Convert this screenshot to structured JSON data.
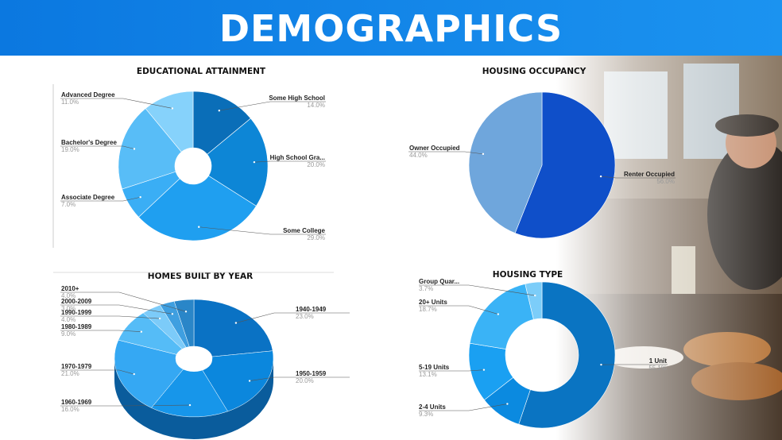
{
  "page": {
    "title": "DEMOGRAPHICS"
  },
  "colors": {
    "banner": "#0b78e0",
    "label_text": "#222222",
    "value_text": "#999999"
  },
  "chart_data": [
    {
      "type": "pie",
      "title": "EDUCATIONAL ATTAINMENT",
      "donut": true,
      "slices": [
        {
          "label": "Some High School",
          "value": 14.0,
          "display": "14.0%",
          "color": "#0a6eb8"
        },
        {
          "label": "High School Gra...",
          "value": 20.0,
          "display": "20.0%",
          "color": "#0d86d6"
        },
        {
          "label": "Some College",
          "value": 29.0,
          "display": "29.0%",
          "color": "#1f9ff0"
        },
        {
          "label": "Associate Degree",
          "value": 7.0,
          "display": "7.0%",
          "color": "#3aaef5"
        },
        {
          "label": "Bachelor's Degree",
          "value": 19.0,
          "display": "19.0%",
          "color": "#58bdf7"
        },
        {
          "label": "Advanced Degree",
          "value": 11.0,
          "display": "11.0%",
          "color": "#86d2fb"
        }
      ]
    },
    {
      "type": "pie",
      "title": "HOUSING OCCUPANCY",
      "donut": false,
      "slices": [
        {
          "label": "Renter Occupied",
          "value": 56.0,
          "display": "56.0%",
          "color": "#0f4fc9"
        },
        {
          "label": "Owner Occupied",
          "value": 44.0,
          "display": "44.0%",
          "color": "#6fa6dc"
        }
      ]
    },
    {
      "type": "pie",
      "title": "HOMES BUILT BY YEAR",
      "donut": true,
      "three_d": true,
      "slices": [
        {
          "label": "1940-1949",
          "value": 23.0,
          "display": "23.0%",
          "color": "#0a72c4"
        },
        {
          "label": "1950-1959",
          "value": 20.0,
          "display": "20.0%",
          "color": "#0b87dd"
        },
        {
          "label": "1960-1969",
          "value": 16.0,
          "display": "16.0%",
          "color": "#1796ea"
        },
        {
          "label": "1970-1979",
          "value": 21.0,
          "display": "21.0%",
          "color": "#35a8f3"
        },
        {
          "label": "1980-1989",
          "value": 9.0,
          "display": "9.0%",
          "color": "#55bcf7"
        },
        {
          "label": "1990-1999",
          "value": 4.0,
          "display": "4.0%",
          "color": "#7ccbf9"
        },
        {
          "label": "2000-2009",
          "value": 3.0,
          "display": "3.0%",
          "color": "#3f9fe0"
        },
        {
          "label": "2010+",
          "value": 4.0,
          "display": "4.0%",
          "color": "#2a86c8"
        }
      ]
    },
    {
      "type": "pie",
      "title": "HOUSING TYPE",
      "donut": true,
      "slices": [
        {
          "label": "1 Unit",
          "value": 55.1,
          "display": "55.1%",
          "color": "#0a74c2"
        },
        {
          "label": "2-4 Units",
          "value": 9.3,
          "display": "9.3%",
          "color": "#0b8ae0"
        },
        {
          "label": "5-19 Units",
          "value": 13.1,
          "display": "13.1%",
          "color": "#1aa0f2"
        },
        {
          "label": "20+ Units",
          "value": 18.7,
          "display": "18.7%",
          "color": "#3ab3f6"
        },
        {
          "label": "Group Quar...",
          "value": 3.7,
          "display": "3.7%",
          "color": "#7ccdf9"
        }
      ]
    }
  ]
}
